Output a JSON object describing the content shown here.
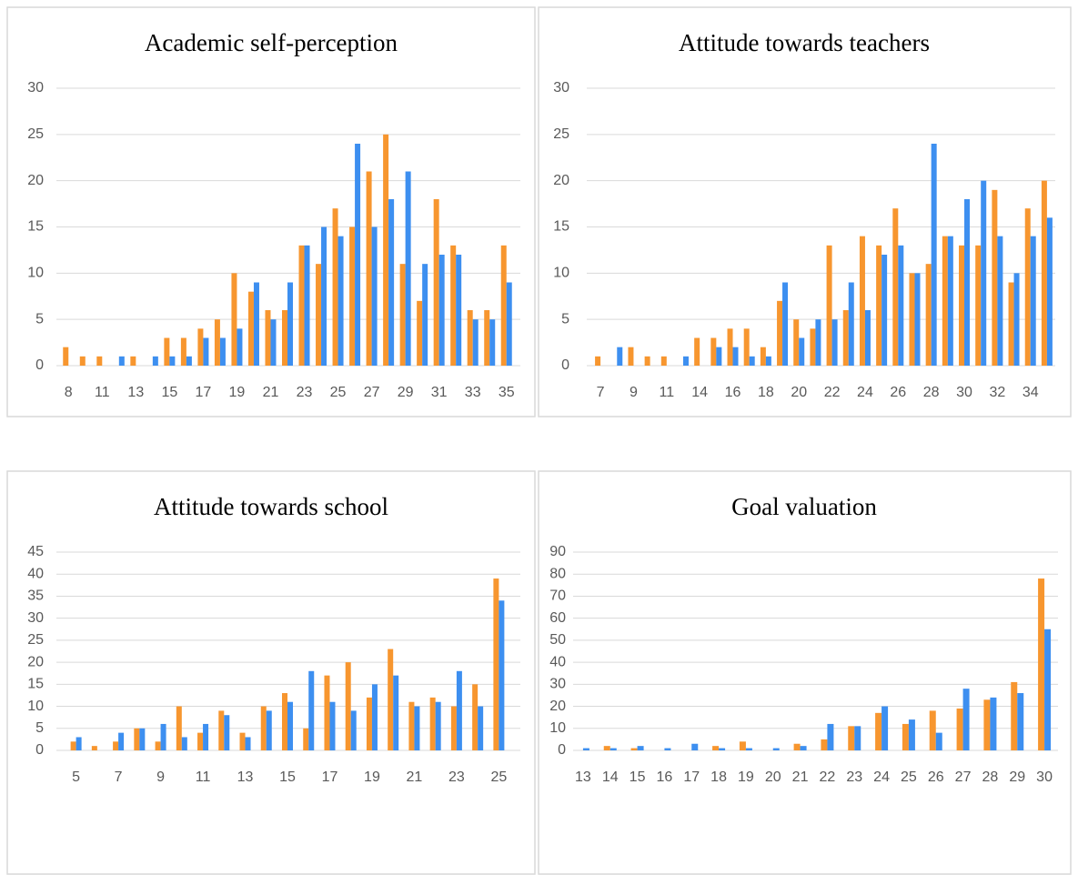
{
  "chart_data": [
    {
      "type": "bar",
      "title": "Academic self-perception",
      "categories": [
        8,
        null,
        11,
        null,
        13,
        null,
        15,
        null,
        17,
        null,
        19,
        null,
        21,
        null,
        23,
        null,
        25,
        null,
        27,
        null,
        29,
        null,
        31,
        null,
        33,
        null,
        35
      ],
      "series": [
        {
          "color": "#f7962f",
          "values": [
            2,
            1,
            1,
            0,
            1,
            0,
            3,
            3,
            4,
            5,
            10,
            8,
            6,
            6,
            13,
            11,
            17,
            15,
            21,
            25,
            11,
            7,
            18,
            13,
            6,
            6,
            13
          ]
        },
        {
          "color": "#3d8ff0",
          "values": [
            0,
            0,
            0,
            1,
            0,
            1,
            1,
            1,
            3,
            3,
            4,
            9,
            5,
            9,
            13,
            15,
            14,
            24,
            15,
            18,
            21,
            11,
            12,
            12,
            5,
            5,
            9
          ]
        }
      ],
      "ylim": [
        0,
        30
      ],
      "yticks": [
        0,
        5,
        10,
        15,
        20,
        25,
        30
      ],
      "grid": true
    },
    {
      "type": "bar",
      "title": "Attitude towards teachers",
      "categories": [
        7,
        null,
        9,
        null,
        11,
        null,
        14,
        null,
        16,
        null,
        18,
        null,
        20,
        null,
        22,
        null,
        24,
        null,
        26,
        null,
        28,
        null,
        30,
        null,
        32,
        null,
        34,
        null
      ],
      "series": [
        {
          "color": "#f7962f",
          "values": [
            1,
            0,
            2,
            1,
            1,
            0,
            3,
            3,
            4,
            4,
            2,
            7,
            5,
            4,
            13,
            6,
            14,
            13,
            17,
            10,
            11,
            14,
            13,
            13,
            19,
            9,
            17,
            20
          ]
        },
        {
          "color": "#3d8ff0",
          "values": [
            0,
            2,
            0,
            0,
            0,
            1,
            0,
            2,
            2,
            1,
            1,
            9,
            3,
            5,
            5,
            9,
            6,
            12,
            13,
            10,
            24,
            14,
            18,
            20,
            14,
            10,
            14,
            16
          ]
        }
      ],
      "ylim": [
        0,
        30
      ],
      "yticks": [
        0,
        5,
        10,
        15,
        20,
        25,
        30
      ],
      "grid": true
    },
    {
      "type": "bar",
      "title": "Attitude towards school",
      "categories": [
        5,
        null,
        7,
        null,
        9,
        null,
        11,
        null,
        13,
        null,
        15,
        null,
        17,
        null,
        19,
        null,
        21,
        null,
        23,
        null,
        25
      ],
      "series": [
        {
          "color": "#f7962f",
          "values": [
            2,
            1,
            2,
            5,
            2,
            10,
            4,
            9,
            4,
            10,
            13,
            5,
            17,
            20,
            12,
            23,
            11,
            12,
            10,
            15,
            39
          ]
        },
        {
          "color": "#3d8ff0",
          "values": [
            3,
            0,
            4,
            5,
            6,
            3,
            6,
            8,
            3,
            9,
            11,
            18,
            11,
            9,
            15,
            17,
            10,
            11,
            18,
            10,
            34
          ]
        }
      ],
      "ylim": [
        0,
        45
      ],
      "yticks": [
        0,
        5,
        10,
        15,
        20,
        25,
        30,
        35,
        40,
        45
      ],
      "grid": true
    },
    {
      "type": "bar",
      "title": "Goal valuation",
      "categories": [
        13,
        14,
        15,
        16,
        17,
        18,
        19,
        20,
        21,
        22,
        23,
        24,
        25,
        26,
        27,
        28,
        29,
        30
      ],
      "series": [
        {
          "color": "#f7962f",
          "values": [
            0,
            2,
            1,
            0,
            0,
            2,
            4,
            0,
            3,
            5,
            11,
            17,
            12,
            18,
            19,
            23,
            31,
            78
          ]
        },
        {
          "color": "#3d8ff0",
          "values": [
            1,
            1,
            2,
            1,
            3,
            1,
            1,
            1,
            2,
            12,
            11,
            20,
            14,
            8,
            28,
            24,
            26,
            55
          ]
        }
      ],
      "ylim": [
        0,
        90
      ],
      "yticks": [
        0,
        10,
        20,
        30,
        40,
        50,
        60,
        70,
        80,
        90
      ],
      "grid": true
    }
  ]
}
